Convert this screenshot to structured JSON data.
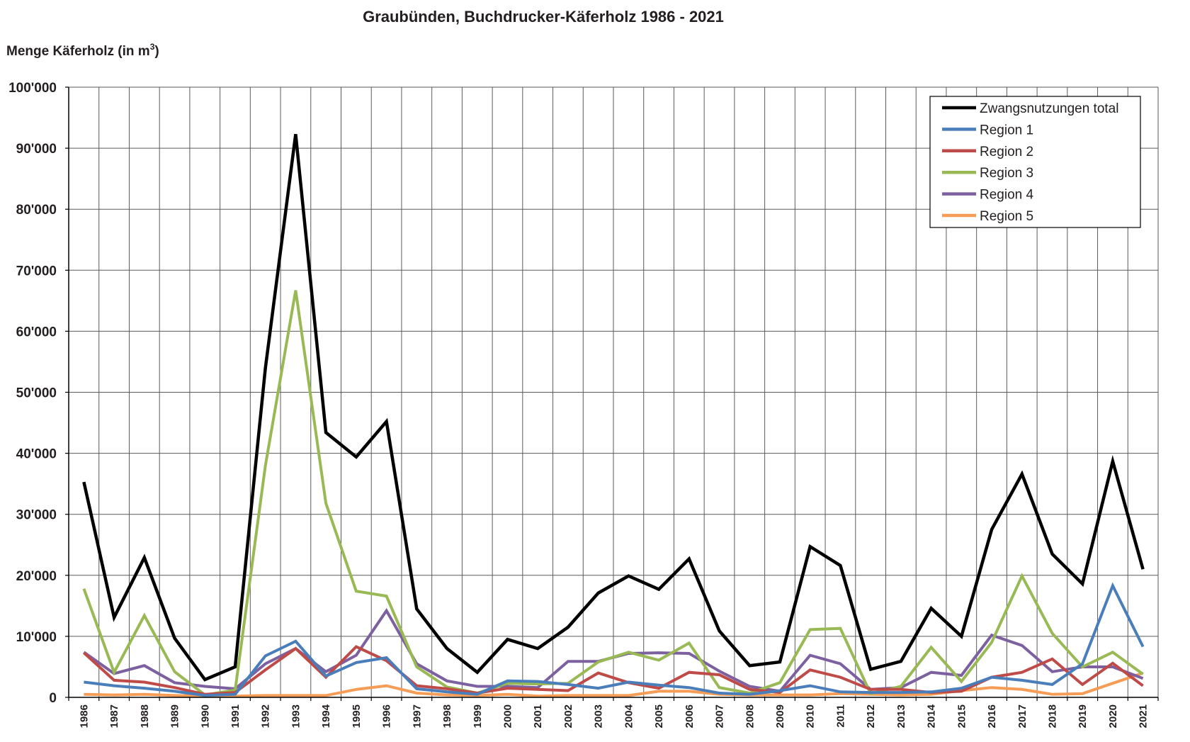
{
  "chart_data": {
    "type": "line",
    "title": "Graubünden,  Buchdrucker-Käferholz 1986 - 2021",
    "ylabel": "Menge Käferholz (in m",
    "ylabel_sup": "3",
    "ylabel_close": ")",
    "xlabel": "",
    "ylim": [
      0,
      100000
    ],
    "yticks": [
      0,
      10000,
      20000,
      30000,
      40000,
      50000,
      60000,
      70000,
      80000,
      90000,
      100000
    ],
    "ytick_labels": [
      "0",
      "10'000",
      "20'000",
      "30'000",
      "40'000",
      "50'000",
      "60'000",
      "70'000",
      "80'000",
      "90'000",
      "100'000"
    ],
    "grid": true,
    "legend_position": "top-right",
    "categories": [
      "1986",
      "1987",
      "1988",
      "1989",
      "1990",
      "1991",
      "1992",
      "1993",
      "1994",
      "1995",
      "1996",
      "1997",
      "1998",
      "1999",
      "2000",
      "2001",
      "2002",
      "2003",
      "2004",
      "2005",
      "2006",
      "2007",
      "2008",
      "2009",
      "2010",
      "2011",
      "2012",
      "2013",
      "2014",
      "2015",
      "2016",
      "2017",
      "2018",
      "2019",
      "2020",
      "2021"
    ],
    "series": [
      {
        "name": "Zwangsnutzungen total",
        "color": "#000000",
        "values": [
          35300,
          13100,
          22900,
          9700,
          2900,
          5000,
          54000,
          92300,
          43400,
          39400,
          45200,
          14500,
          8000,
          4100,
          9500,
          8000,
          11500,
          17100,
          19900,
          17700,
          22700,
          10900,
          5200,
          5800,
          24700,
          21600,
          4600,
          5900,
          14600,
          10000,
          27500,
          36600,
          23500,
          18600,
          38700,
          21000
        ]
      },
      {
        "name": "Region 1",
        "color": "#4a7ebb",
        "values": [
          2500,
          1900,
          1500,
          1000,
          300,
          500,
          6800,
          9200,
          3500,
          5700,
          6500,
          1400,
          900,
          500,
          2700,
          2600,
          2100,
          1500,
          2500,
          2000,
          1600,
          700,
          500,
          1100,
          1900,
          900,
          800,
          800,
          900,
          1500,
          3300,
          2800,
          2100,
          5500,
          18300,
          8300
        ]
      },
      {
        "name": "Region 2",
        "color": "#be4b48",
        "values": [
          7300,
          2800,
          2500,
          1600,
          500,
          800,
          4500,
          8000,
          3300,
          8300,
          6000,
          1900,
          1400,
          700,
          1500,
          1300,
          1100,
          4000,
          2400,
          1500,
          4100,
          3700,
          1300,
          800,
          4500,
          3300,
          1300,
          1300,
          800,
          1000,
          3300,
          4100,
          6300,
          2100,
          5600,
          1900
        ]
      },
      {
        "name": "Region 3",
        "color": "#98b954",
        "values": [
          17800,
          4100,
          13400,
          4200,
          400,
          1200,
          38000,
          66700,
          31800,
          17400,
          16600,
          5000,
          1700,
          700,
          2300,
          2200,
          2300,
          5800,
          7400,
          6100,
          8900,
          1600,
          700,
          2400,
          11100,
          11300,
          600,
          1800,
          8200,
          2600,
          9000,
          19900,
          10500,
          5000,
          7400,
          3800
        ]
      },
      {
        "name": "Region 4",
        "color": "#7d60a0",
        "values": [
          7400,
          3900,
          5200,
          2400,
          1800,
          1400,
          5500,
          8000,
          4200,
          6900,
          14200,
          5500,
          2700,
          1800,
          1800,
          1600,
          5900,
          5900,
          7200,
          7300,
          7200,
          4300,
          1800,
          1000,
          6900,
          5500,
          1300,
          1600,
          4100,
          3600,
          10200,
          8500,
          4200,
          5000,
          5000,
          3100
        ]
      },
      {
        "name": "Region 5",
        "color": "#f59d56",
        "values": [
          500,
          400,
          500,
          300,
          200,
          200,
          300,
          300,
          300,
          1300,
          1900,
          700,
          400,
          300,
          500,
          200,
          300,
          300,
          300,
          1000,
          1000,
          500,
          400,
          400,
          400,
          600,
          500,
          400,
          500,
          1100,
          1600,
          1300,
          500,
          600,
          2300,
          4000
        ]
      }
    ]
  }
}
